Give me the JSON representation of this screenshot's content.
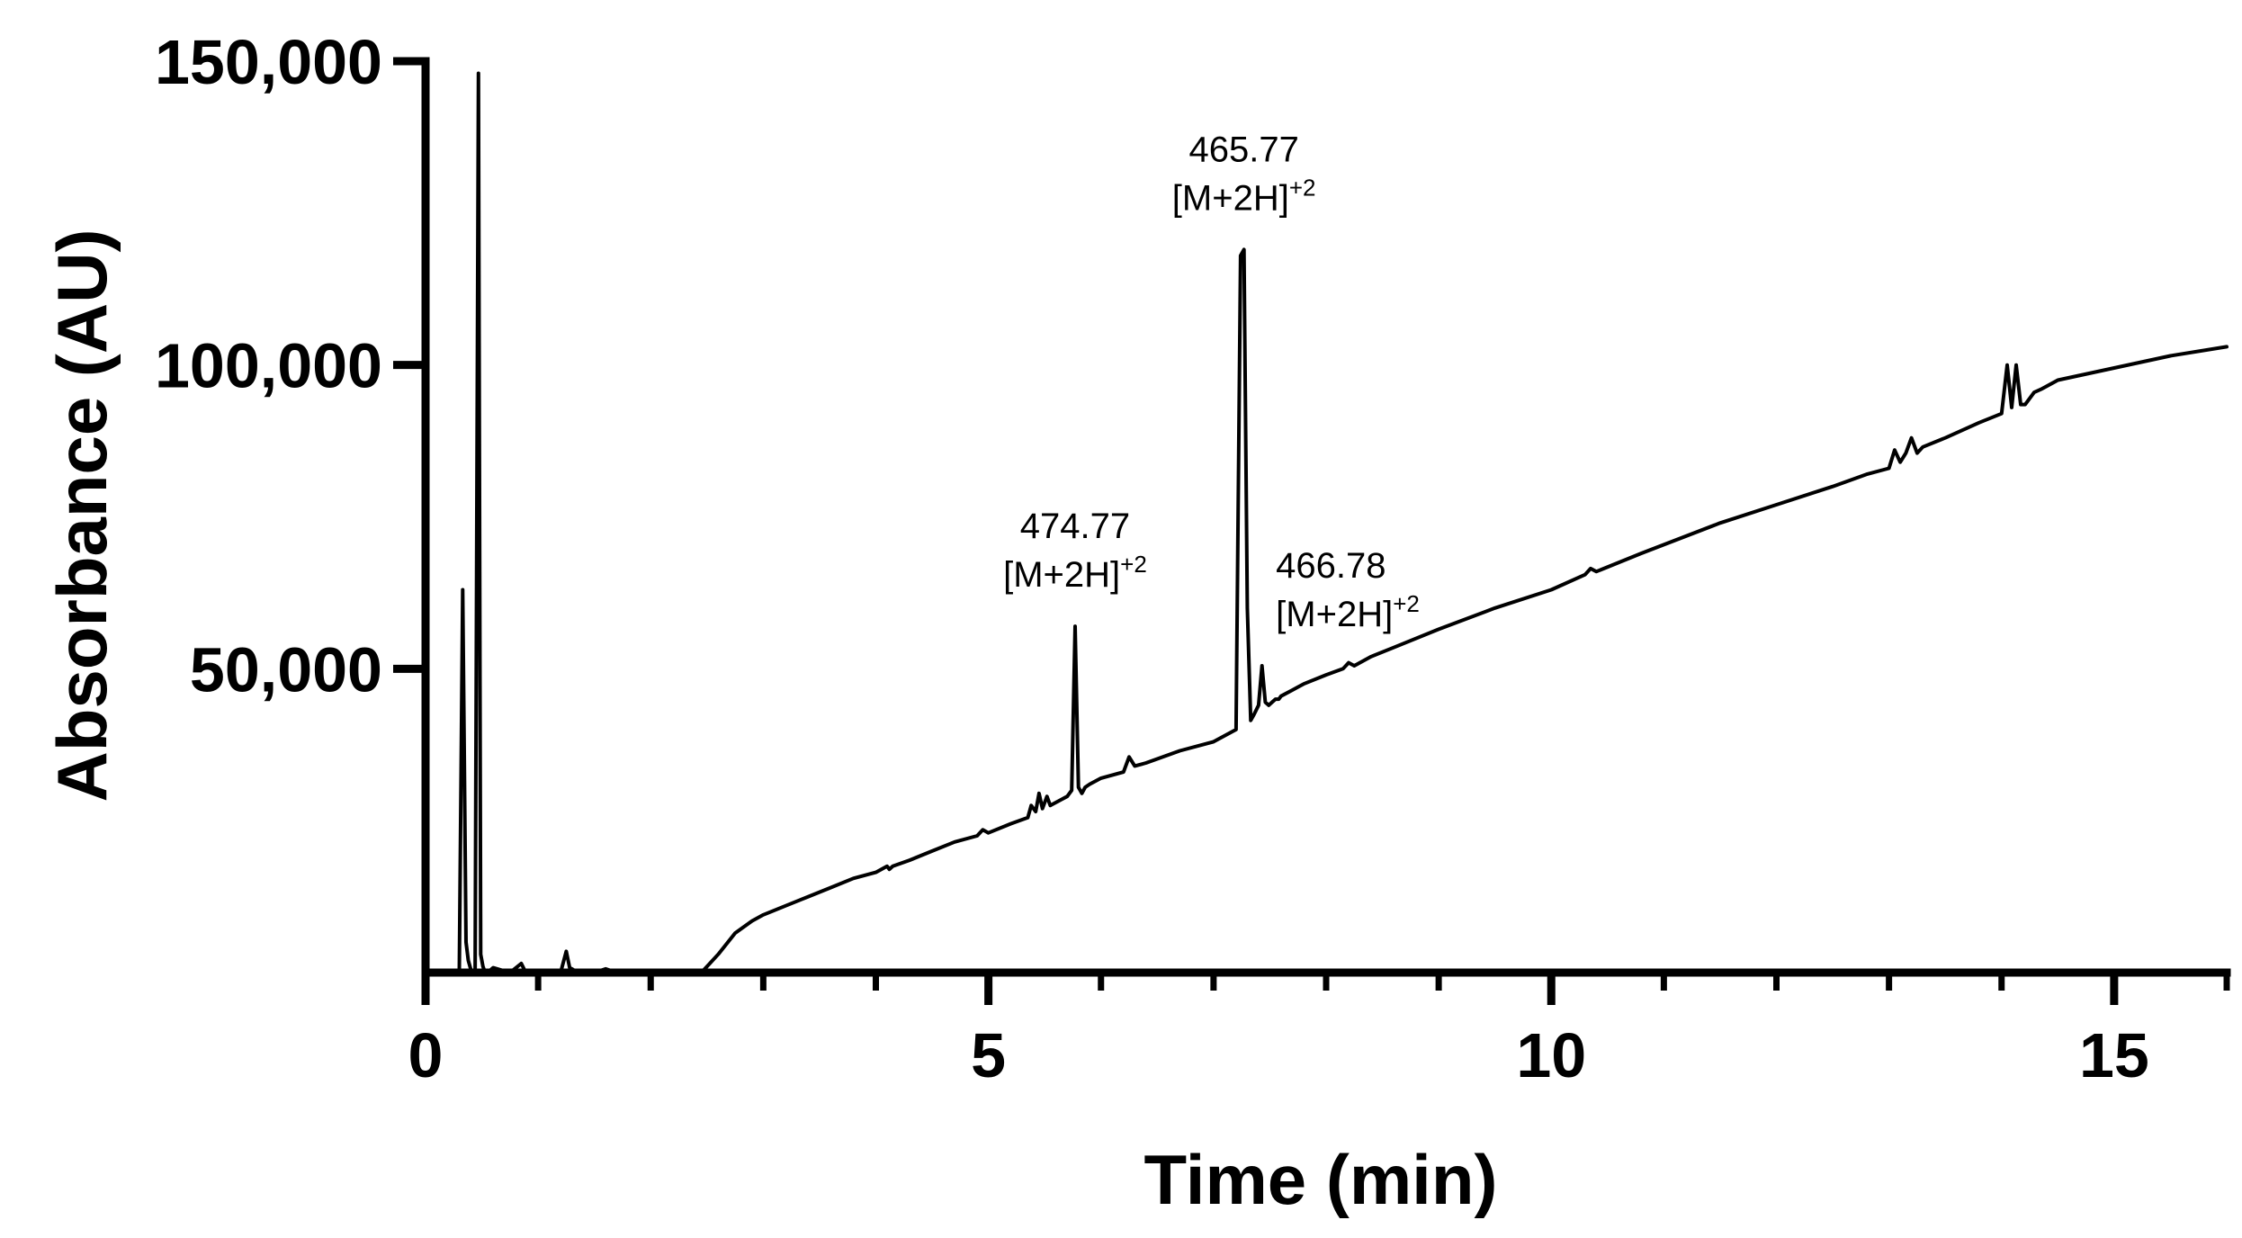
{
  "chart_data": {
    "type": "line",
    "xlabel": "Time (min)",
    "ylabel": "Absorbance (AU)",
    "xlim": [
      0,
      16
    ],
    "ylim": [
      0,
      150000
    ],
    "x_ticks": [
      0,
      5,
      10,
      15
    ],
    "x_minor_ticks": [
      1,
      2,
      3,
      4,
      6,
      7,
      8,
      9,
      11,
      12,
      13,
      14,
      16
    ],
    "y_ticks": [
      50000,
      100000,
      150000
    ],
    "x_tick_labels": [
      "0",
      "5",
      "10",
      "15"
    ],
    "y_tick_labels": [
      "50,000",
      "100,000",
      "150,000"
    ],
    "grid": false,
    "legend": "none",
    "line_color": "#000000",
    "series": [
      {
        "x": [
          0.0,
          0.3,
          0.33,
          0.36,
          0.38,
          0.41,
          0.44,
          0.47,
          0.49,
          0.51,
          0.53,
          0.55,
          0.6,
          0.75,
          0.85,
          0.88,
          0.91,
          1.0,
          1.2,
          1.25,
          1.28,
          1.31,
          1.35,
          1.5,
          1.6,
          1.65,
          1.7,
          2.0,
          2.2,
          2.45,
          2.6,
          2.75,
          2.9,
          3.0,
          3.2,
          3.4,
          3.6,
          3.8,
          4.0,
          4.1,
          4.12,
          4.15,
          4.3,
          4.5,
          4.7,
          4.9,
          4.95,
          5.0,
          5.2,
          5.35,
          5.38,
          5.42,
          5.45,
          5.48,
          5.52,
          5.55,
          5.6,
          5.65,
          5.7,
          5.74,
          5.77,
          5.8,
          5.83,
          5.86,
          5.9,
          6.0,
          6.2,
          6.25,
          6.3,
          6.4,
          6.7,
          7.0,
          7.2,
          7.24,
          7.27,
          7.3,
          7.33,
          7.36,
          7.4,
          7.43,
          7.46,
          7.49,
          7.52,
          7.55,
          7.58,
          7.6,
          7.7,
          7.8,
          8.0,
          8.15,
          8.2,
          8.25,
          8.4,
          8.6,
          9.0,
          9.5,
          10.0,
          10.3,
          10.35,
          10.4,
          10.8,
          11.5,
          12.0,
          12.5,
          12.8,
          13.0,
          13.05,
          13.1,
          13.15,
          13.2,
          13.25,
          13.3,
          13.5,
          13.8,
          14.0,
          14.05,
          14.09,
          14.13,
          14.17,
          14.21,
          14.25,
          14.29,
          14.35,
          14.5,
          15.0,
          15.5,
          16.0
        ],
        "values": [
          0,
          0,
          63000,
          5000,
          2000,
          0,
          0,
          148000,
          3000,
          1000,
          0,
          0,
          800,
          0,
          1500,
          400,
          0,
          0,
          0,
          3500,
          800,
          500,
          0,
          0,
          600,
          300,
          0,
          0,
          0,
          0,
          3000,
          6500,
          8500,
          9500,
          11000,
          12500,
          14000,
          15500,
          16500,
          17500,
          17000,
          17500,
          18500,
          20000,
          21500,
          22500,
          23500,
          23000,
          24500,
          25500,
          27500,
          26500,
          29500,
          27000,
          29000,
          27500,
          28000,
          28500,
          29000,
          30000,
          57000,
          30500,
          29500,
          30500,
          31000,
          32000,
          33000,
          35500,
          34000,
          34500,
          36500,
          38000,
          40000,
          118000,
          119000,
          60000,
          41500,
          42500,
          44000,
          50500,
          44500,
          44000,
          44500,
          45000,
          45000,
          45500,
          46500,
          47500,
          49000,
          50000,
          51000,
          50500,
          52000,
          53500,
          56500,
          60000,
          63000,
          65500,
          66500,
          66000,
          69000,
          74000,
          77000,
          80000,
          82000,
          83000,
          86000,
          84000,
          85500,
          88000,
          85500,
          86500,
          88000,
          90500,
          92000,
          100000,
          93000,
          100000,
          93500,
          93500,
          94500,
          95500,
          96000,
          97500,
          99500,
          101500,
          103000
        ]
      }
    ],
    "annotations": [
      {
        "x": 5.77,
        "y": 57000,
        "line1": "474.77",
        "line2": "[M+2H]",
        "superscript": "+2"
      },
      {
        "x": 7.27,
        "y": 119000,
        "line1": "465.77",
        "line2": "[M+2H]",
        "superscript": "+2"
      },
      {
        "x": 7.49,
        "y": 50500,
        "line1": "466.78",
        "line2": "[M+2H]",
        "superscript": "+2"
      }
    ]
  }
}
